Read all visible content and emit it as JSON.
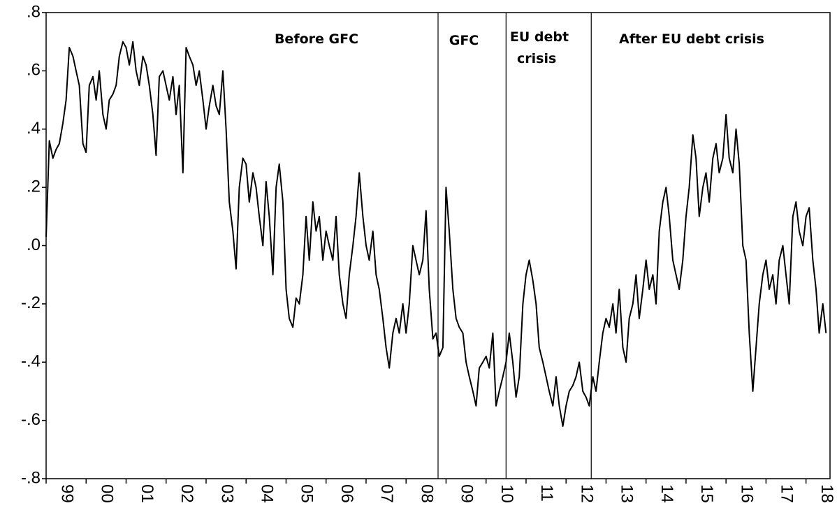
{
  "chart_data": {
    "type": "line",
    "color": "#000000",
    "x": [
      1999.0,
      1999.08,
      1999.17,
      1999.25,
      1999.33,
      1999.42,
      1999.5,
      1999.58,
      1999.67,
      1999.75,
      1999.83,
      1999.92,
      2000.0,
      2000.08,
      2000.17,
      2000.25,
      2000.33,
      2000.42,
      2000.5,
      2000.58,
      2000.67,
      2000.75,
      2000.83,
      2000.92,
      2001.0,
      2001.08,
      2001.17,
      2001.25,
      2001.33,
      2001.42,
      2001.5,
      2001.58,
      2001.67,
      2001.75,
      2001.83,
      2001.92,
      2002.0,
      2002.08,
      2002.17,
      2002.25,
      2002.33,
      2002.42,
      2002.5,
      2002.58,
      2002.67,
      2002.75,
      2002.83,
      2002.92,
      2003.0,
      2003.08,
      2003.17,
      2003.25,
      2003.33,
      2003.42,
      2003.5,
      2003.58,
      2003.67,
      2003.75,
      2003.83,
      2003.92,
      2004.0,
      2004.08,
      2004.17,
      2004.25,
      2004.33,
      2004.42,
      2004.5,
      2004.58,
      2004.67,
      2004.75,
      2004.83,
      2004.92,
      2005.0,
      2005.08,
      2005.17,
      2005.25,
      2005.33,
      2005.42,
      2005.5,
      2005.58,
      2005.67,
      2005.75,
      2005.83,
      2005.92,
      2006.0,
      2006.08,
      2006.17,
      2006.25,
      2006.33,
      2006.42,
      2006.5,
      2006.58,
      2006.67,
      2006.75,
      2006.83,
      2006.92,
      2007.0,
      2007.08,
      2007.17,
      2007.25,
      2007.33,
      2007.42,
      2007.5,
      2007.58,
      2007.67,
      2007.75,
      2007.83,
      2007.92,
      2008.0,
      2008.08,
      2008.17,
      2008.25,
      2008.33,
      2008.42,
      2008.5,
      2008.58,
      2008.67,
      2008.75,
      2008.83,
      2008.92,
      2009.0,
      2009.08,
      2009.17,
      2009.25,
      2009.33,
      2009.42,
      2009.5,
      2009.58,
      2009.67,
      2009.75,
      2009.83,
      2009.92,
      2010.0,
      2010.08,
      2010.17,
      2010.25,
      2010.33,
      2010.42,
      2010.5,
      2010.58,
      2010.67,
      2010.75,
      2010.83,
      2010.92,
      2011.0,
      2011.08,
      2011.17,
      2011.25,
      2011.33,
      2011.42,
      2011.5,
      2011.58,
      2011.67,
      2011.75,
      2011.83,
      2011.92,
      2012.0,
      2012.08,
      2012.17,
      2012.25,
      2012.33,
      2012.42,
      2012.5,
      2012.58,
      2012.67,
      2012.75,
      2012.83,
      2012.92,
      2013.0,
      2013.08,
      2013.17,
      2013.25,
      2013.33,
      2013.42,
      2013.5,
      2013.58,
      2013.67,
      2013.75,
      2013.83,
      2013.92,
      2014.0,
      2014.08,
      2014.17,
      2014.25,
      2014.33,
      2014.42,
      2014.5,
      2014.58,
      2014.67,
      2014.75,
      2014.83,
      2014.92,
      2015.0,
      2015.08,
      2015.17,
      2015.25,
      2015.33,
      2015.42,
      2015.5,
      2015.58,
      2015.67,
      2015.75,
      2015.83,
      2015.92,
      2016.0,
      2016.08,
      2016.17,
      2016.25,
      2016.33,
      2016.42,
      2016.5,
      2016.58,
      2016.67,
      2016.75,
      2016.83,
      2016.92,
      2017.0,
      2017.08,
      2017.17,
      2017.25,
      2017.33,
      2017.42,
      2017.5,
      2017.58,
      2017.67,
      2017.75,
      2017.83,
      2017.92,
      2018.0,
      2018.08,
      2018.17,
      2018.25,
      2018.33,
      2018.42,
      2018.5
    ],
    "values": [
      0.03,
      0.36,
      0.3,
      0.33,
      0.35,
      0.42,
      0.5,
      0.68,
      0.65,
      0.6,
      0.55,
      0.35,
      0.32,
      0.55,
      0.58,
      0.5,
      0.6,
      0.45,
      0.4,
      0.5,
      0.52,
      0.55,
      0.65,
      0.7,
      0.68,
      0.62,
      0.7,
      0.6,
      0.55,
      0.65,
      0.62,
      0.55,
      0.45,
      0.31,
      0.58,
      0.6,
      0.55,
      0.5,
      0.58,
      0.45,
      0.55,
      0.25,
      0.68,
      0.65,
      0.62,
      0.55,
      0.6,
      0.5,
      0.4,
      0.48,
      0.55,
      0.48,
      0.45,
      0.6,
      0.4,
      0.15,
      0.05,
      -0.08,
      0.2,
      0.3,
      0.28,
      0.15,
      0.25,
      0.2,
      0.1,
      0.0,
      0.22,
      0.1,
      -0.1,
      0.2,
      0.28,
      0.15,
      -0.15,
      -0.25,
      -0.28,
      -0.18,
      -0.2,
      -0.1,
      0.1,
      -0.05,
      0.15,
      0.05,
      0.1,
      -0.05,
      0.05,
      0.0,
      -0.05,
      0.1,
      -0.1,
      -0.2,
      -0.25,
      -0.1,
      0.0,
      0.1,
      0.25,
      0.1,
      0.0,
      -0.05,
      0.05,
      -0.1,
      -0.15,
      -0.25,
      -0.35,
      -0.42,
      -0.3,
      -0.25,
      -0.3,
      -0.2,
      -0.3,
      -0.2,
      0.0,
      -0.05,
      -0.1,
      -0.05,
      0.12,
      -0.15,
      -0.32,
      -0.3,
      -0.38,
      -0.35,
      0.2,
      0.05,
      -0.15,
      -0.25,
      -0.28,
      -0.3,
      -0.4,
      -0.45,
      -0.5,
      -0.55,
      -0.42,
      -0.4,
      -0.38,
      -0.42,
      -0.3,
      -0.55,
      -0.5,
      -0.45,
      -0.4,
      -0.3,
      -0.4,
      -0.52,
      -0.45,
      -0.2,
      -0.1,
      -0.05,
      -0.12,
      -0.2,
      -0.35,
      -0.4,
      -0.45,
      -0.5,
      -0.55,
      -0.45,
      -0.55,
      -0.62,
      -0.55,
      -0.5,
      -0.48,
      -0.45,
      -0.4,
      -0.5,
      -0.52,
      -0.55,
      -0.45,
      -0.5,
      -0.4,
      -0.3,
      -0.25,
      -0.28,
      -0.2,
      -0.3,
      -0.15,
      -0.35,
      -0.4,
      -0.25,
      -0.2,
      -0.1,
      -0.25,
      -0.15,
      -0.05,
      -0.15,
      -0.1,
      -0.2,
      0.05,
      0.15,
      0.2,
      0.1,
      -0.05,
      -0.1,
      -0.15,
      -0.05,
      0.1,
      0.2,
      0.38,
      0.3,
      0.1,
      0.2,
      0.25,
      0.15,
      0.3,
      0.35,
      0.25,
      0.3,
      0.45,
      0.3,
      0.25,
      0.4,
      0.28,
      0.0,
      -0.05,
      -0.3,
      -0.5,
      -0.35,
      -0.2,
      -0.1,
      -0.05,
      -0.15,
      -0.1,
      -0.2,
      -0.05,
      0.0,
      -0.1,
      -0.2,
      0.1,
      0.15,
      0.05,
      0.0,
      0.1,
      0.13,
      -0.05,
      -0.15,
      -0.3,
      -0.2,
      -0.3
    ],
    "xlim": [
      1999,
      2018.6
    ],
    "xticks": [
      {
        "value": 1999,
        "label": "99"
      },
      {
        "value": 2000,
        "label": "00"
      },
      {
        "value": 2001,
        "label": "01"
      },
      {
        "value": 2002,
        "label": "02"
      },
      {
        "value": 2003,
        "label": "03"
      },
      {
        "value": 2004,
        "label": "04"
      },
      {
        "value": 2005,
        "label": "05"
      },
      {
        "value": 2006,
        "label": "06"
      },
      {
        "value": 2007,
        "label": "07"
      },
      {
        "value": 2008,
        "label": "08"
      },
      {
        "value": 2009,
        "label": "09"
      },
      {
        "value": 2010,
        "label": "10"
      },
      {
        "value": 2011,
        "label": "11"
      },
      {
        "value": 2012,
        "label": "12"
      },
      {
        "value": 2013,
        "label": "13"
      },
      {
        "value": 2014,
        "label": "14"
      },
      {
        "value": 2015,
        "label": "15"
      },
      {
        "value": 2016,
        "label": "16"
      },
      {
        "value": 2017,
        "label": "17"
      },
      {
        "value": 2018,
        "label": "18"
      }
    ],
    "ylim": [
      -0.8,
      0.8
    ],
    "yticks": [
      {
        "value": -0.8,
        "label": "-.8"
      },
      {
        "value": -0.6,
        "label": "-.6"
      },
      {
        "value": -0.4,
        "label": "-.4"
      },
      {
        "value": -0.2,
        "label": "-.2"
      },
      {
        "value": 0,
        "label": ".0"
      },
      {
        "value": 0.2,
        "label": ".2"
      },
      {
        "value": 0.4,
        "label": ".4"
      },
      {
        "value": 0.6,
        "label": ".6"
      },
      {
        "value": 0.8,
        "label": ".8"
      }
    ],
    "period_breaks": [
      2008.8,
      2010.5,
      2012.63
    ],
    "annotations": [
      "Before GFC",
      "GFC",
      "EU debt",
      "crisis",
      "After EU debt crisis"
    ]
  }
}
